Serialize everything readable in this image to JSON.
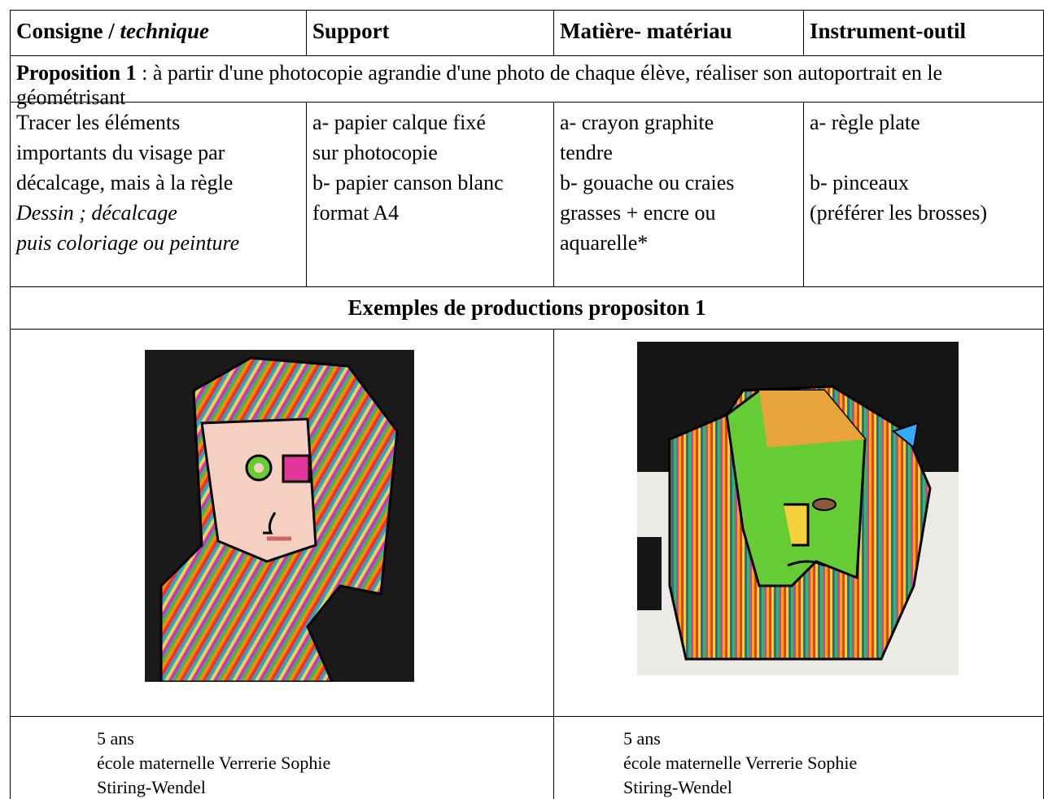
{
  "header": {
    "cells": [
      {
        "normal": "Consigne /",
        "italic": "technique"
      },
      {
        "normal": "Support"
      },
      {
        "normal": "Matière- matériau"
      },
      {
        "normal": "Instrument-outil"
      }
    ]
  },
  "proposition": {
    "label": "Proposition 1",
    "text": ": à partir d'une photocopie agrandie d'une photo de chaque élève, réaliser son autoportrait en le géométrisant"
  },
  "details": {
    "consigne": {
      "lines": [
        "Tracer les éléments",
        "importants du visage par",
        "décalcage, mais à la règle"
      ],
      "italic_lines": [
        "Dessin ; décalcage",
        "puis coloriage ou peinture"
      ]
    },
    "support": {
      "lines": [
        "a- papier calque fixé",
        "sur photocopie",
        "b- papier canson blanc",
        "format A4"
      ]
    },
    "matiere": {
      "lines": [
        "a- crayon graphite",
        "tendre",
        "b- gouache ou craies",
        "grasses + encre ou",
        "aquarelle*"
      ]
    },
    "instrument": {
      "lines": [
        "a- règle plate",
        "b- pinceaux",
        "(préférer les brosses)"
      ]
    }
  },
  "examples": {
    "title": "Exemples de productions propositon 1",
    "captions": [
      {
        "lines": [
          "5 ans",
          "école maternelle Verrerie Sophie",
          "Stiring-Wendel"
        ]
      },
      {
        "lines": [
          "5 ans",
          "école maternelle Verrerie Sophie",
          "Stiring-Wendel"
        ]
      }
    ]
  }
}
